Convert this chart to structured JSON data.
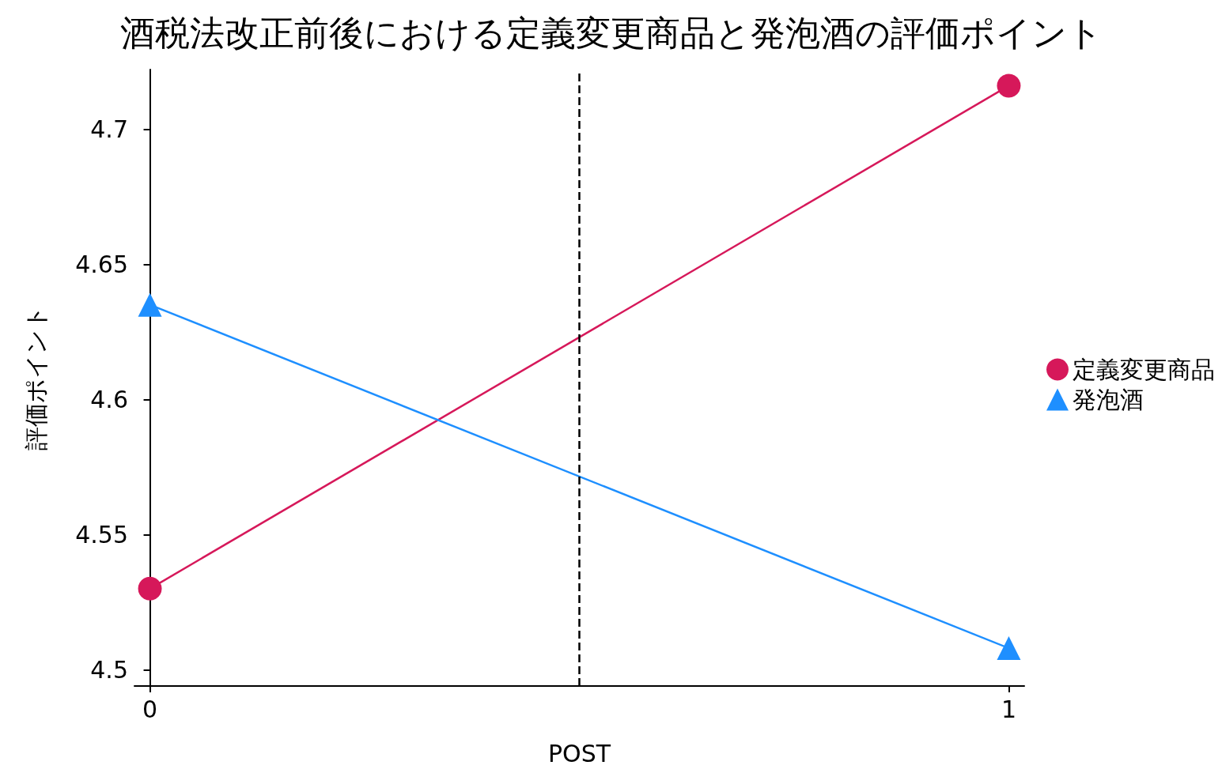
{
  "chart_data": {
    "type": "line",
    "title": "酒税法改正前後における定義変更商品と発泡酒の評価ポイント",
    "xlabel": "POST",
    "ylabel": "評価ポイント",
    "x": [
      0,
      1
    ],
    "series": [
      {
        "name": "定義変更商品",
        "color": "#d6185a",
        "values": [
          4.53,
          4.716
        ],
        "marker": "circle"
      },
      {
        "name": "発泡酒",
        "color": "#1e8fff",
        "values": [
          4.635,
          4.508
        ],
        "marker": "triangle"
      }
    ],
    "xlim": [
      -0.018,
      1.018
    ],
    "xticks": [
      0,
      1
    ],
    "ylim": [
      4.494,
      4.722
    ],
    "yticks": [
      4.5,
      4.55,
      4.6,
      4.65,
      4.7
    ],
    "ref_lines": [
      {
        "axis": "x",
        "value": 0.5,
        "color": "#000000",
        "line_style": "dashed"
      }
    ],
    "grid": false,
    "legend": "right",
    "line_style": "solid"
  }
}
